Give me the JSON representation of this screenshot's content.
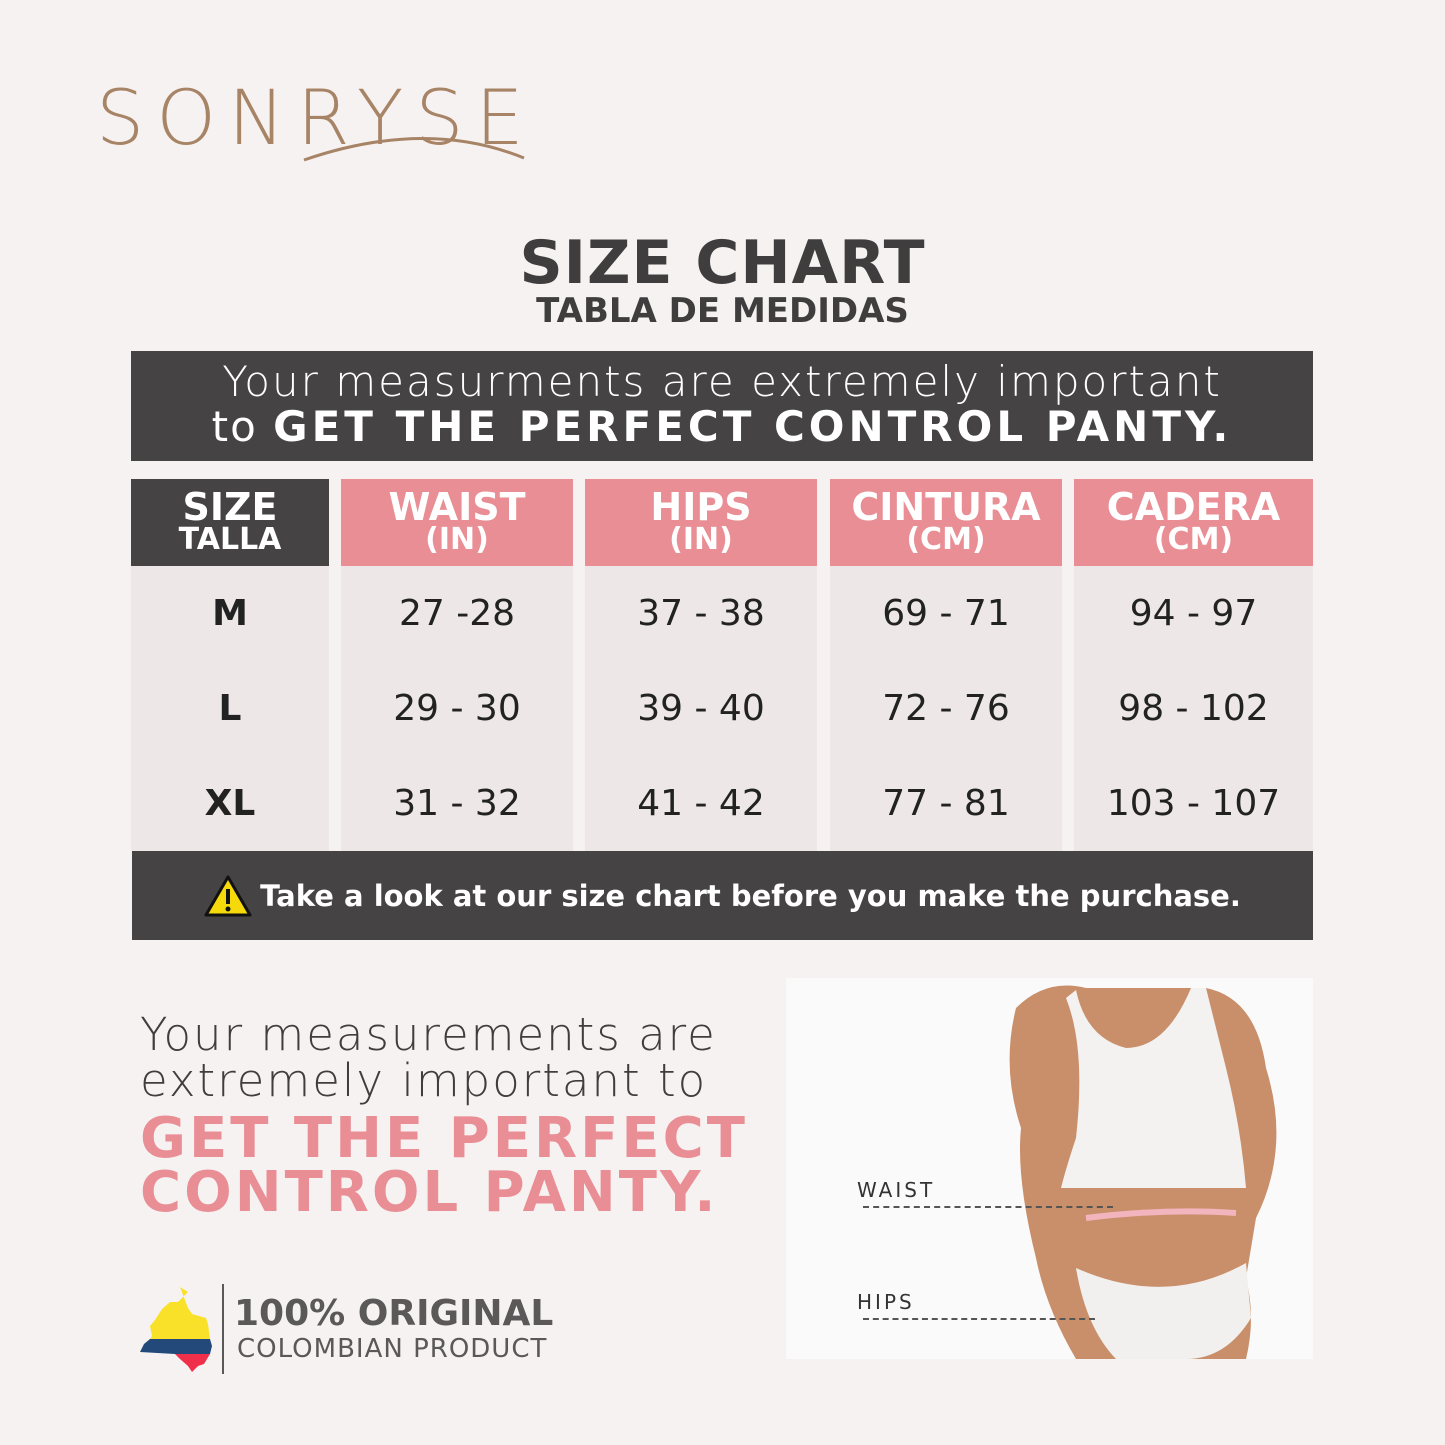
{
  "brand": {
    "logo": "SONRYSE",
    "color": "#a78466"
  },
  "title": {
    "main": "SIZE CHART",
    "sub": "TABLA DE MEDIDAS"
  },
  "banner": {
    "line1": "Your measurments are extremely important",
    "line2_pre": "to",
    "line2_bold": "GET THE PERFECT CONTROL PANTY."
  },
  "table": {
    "columns": [
      {
        "label": "SIZE",
        "sub": "TALLA"
      },
      {
        "label": "WAIST",
        "sub": "(IN)"
      },
      {
        "label": "HIPS",
        "sub": "(IN)"
      },
      {
        "label": "CINTURA",
        "sub": "(CM)"
      },
      {
        "label": "CADERA",
        "sub": "(CM)"
      }
    ],
    "rows": [
      [
        "M",
        "27 -28",
        "37 - 38",
        "69 - 71",
        "94 - 97"
      ],
      [
        "L",
        "29 - 30",
        "39 - 40",
        "72 - 76",
        "98 - 102"
      ],
      [
        "XL",
        "31 - 32",
        "41 - 42",
        "77 - 81",
        "103 - 107"
      ]
    ]
  },
  "note": {
    "icon": "warning-icon",
    "text": "Take a look at our size chart before you make the purchase."
  },
  "bottom": {
    "line1": "Your measurements are",
    "line2": "extremely important to",
    "head1": "GET THE PERFECT",
    "head2": "CONTROL PANTY."
  },
  "photo": {
    "waist_label": "WAIST",
    "hips_label": "HIPS"
  },
  "origin": {
    "title": "100% ORIGINAL",
    "sub": "COLOMBIAN PRODUCT",
    "icon": "colombia-map-icon"
  },
  "colors": {
    "background": "#f7f2f2",
    "dark": "#454343",
    "pink": "#e88e94",
    "cell": "#ede8e7"
  }
}
